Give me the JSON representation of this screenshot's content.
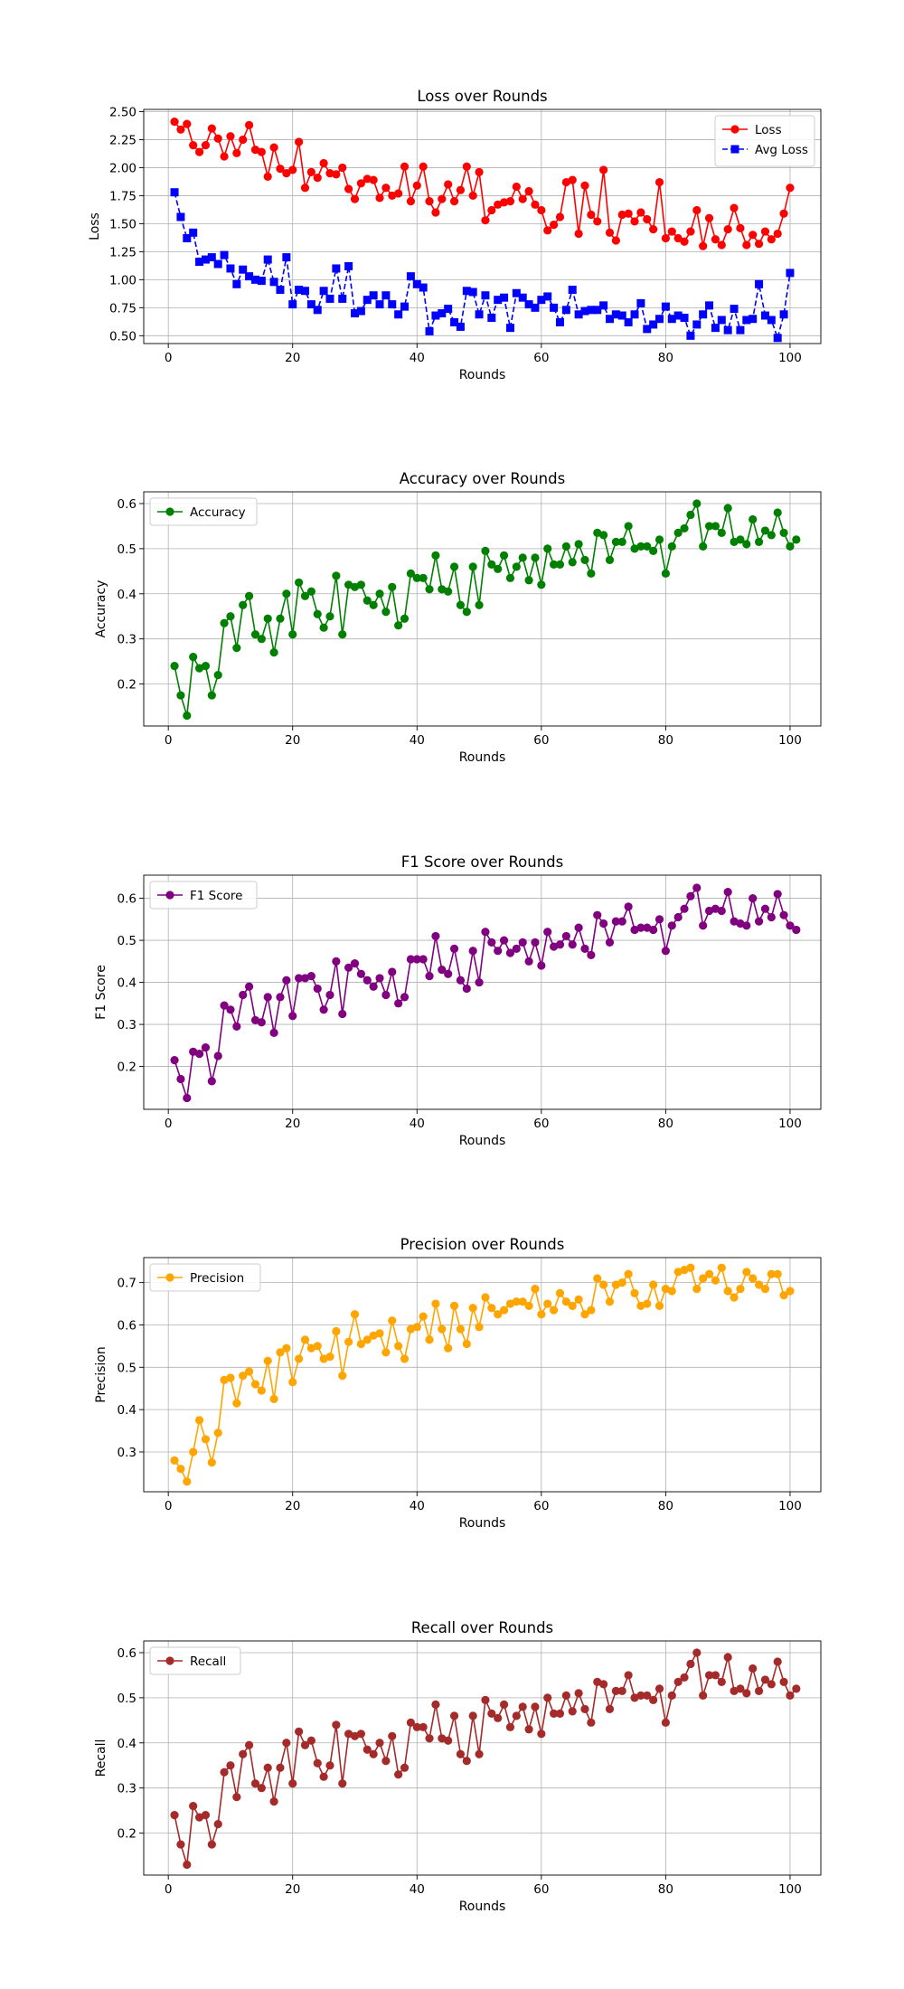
{
  "chart_data": [
    {
      "type": "line",
      "title": "Loss over Rounds",
      "xlabel": "Rounds",
      "ylabel": "Loss",
      "xlim": [
        -3.95,
        104.95
      ],
      "ylim": [
        0.43,
        2.52
      ],
      "xticks": [
        0,
        20,
        40,
        60,
        80,
        100
      ],
      "yticks": [
        0.5,
        0.75,
        1.0,
        1.25,
        1.5,
        1.75,
        2.0,
        2.25,
        2.5
      ],
      "yticklabels": [
        "0.50",
        "0.75",
        "1.00",
        "1.25",
        "1.50",
        "1.75",
        "2.00",
        "2.25",
        "2.50"
      ],
      "grid": true,
      "legend": "upper right",
      "series": [
        {
          "name": "Loss",
          "color": "#ff0000",
          "marker": "circle",
          "linestyle": "solid",
          "values": [
            2.41,
            2.34,
            2.39,
            2.2,
            2.14,
            2.2,
            2.35,
            2.26,
            2.1,
            2.28,
            2.13,
            2.25,
            2.38,
            2.16,
            2.14,
            1.92,
            2.18,
            1.99,
            1.95,
            1.98,
            2.23,
            1.82,
            1.96,
            1.91,
            2.04,
            1.95,
            1.94,
            2.0,
            1.81,
            1.72,
            1.86,
            1.9,
            1.89,
            1.73,
            1.82,
            1.75,
            1.77,
            2.01,
            1.7,
            1.84,
            2.01,
            1.7,
            1.6,
            1.72,
            1.85,
            1.7,
            1.8,
            2.01,
            1.75,
            1.96,
            1.53,
            1.62,
            1.67,
            1.69,
            1.7,
            1.83,
            1.72,
            1.79,
            1.67,
            1.62,
            1.44,
            1.49,
            1.56,
            1.87,
            1.89,
            1.41,
            1.84,
            1.58,
            1.52,
            1.98,
            1.42,
            1.35,
            1.58,
            1.59,
            1.52,
            1.6,
            1.54,
            1.45,
            1.87,
            1.37,
            1.43,
            1.37,
            1.34,
            1.43,
            1.62,
            1.3,
            1.55,
            1.36,
            1.31,
            1.45,
            1.64,
            1.46,
            1.31,
            1.4,
            1.32,
            1.43,
            1.36,
            1.41,
            1.59,
            1.82
          ]
        },
        {
          "name": "Avg Loss",
          "color": "#0000ff",
          "marker": "square",
          "linestyle": "dashed",
          "values": [
            1.78,
            1.56,
            1.37,
            1.42,
            1.16,
            1.18,
            1.2,
            1.14,
            1.22,
            1.1,
            0.96,
            1.09,
            1.03,
            1.0,
            0.99,
            1.18,
            0.98,
            0.91,
            1.2,
            0.78,
            0.91,
            0.9,
            0.78,
            0.73,
            0.9,
            0.83,
            1.1,
            0.83,
            1.12,
            0.7,
            0.72,
            0.82,
            0.86,
            0.78,
            0.86,
            0.78,
            0.69,
            0.76,
            1.03,
            0.96,
            0.93,
            0.54,
            0.68,
            0.7,
            0.74,
            0.62,
            0.58,
            0.9,
            0.89,
            0.69,
            0.86,
            0.66,
            0.82,
            0.84,
            0.57,
            0.88,
            0.84,
            0.78,
            0.75,
            0.82,
            0.85,
            0.75,
            0.62,
            0.73,
            0.91,
            0.69,
            0.72,
            0.73,
            0.73,
            0.77,
            0.65,
            0.69,
            0.68,
            0.62,
            0.69,
            0.79,
            0.56,
            0.6,
            0.65,
            0.76,
            0.65,
            0.68,
            0.66,
            0.5,
            0.6,
            0.69,
            0.77,
            0.57,
            0.64,
            0.55,
            0.74,
            0.55,
            0.64,
            0.65,
            0.96,
            0.68,
            0.64,
            0.48,
            0.69,
            1.06
          ]
        }
      ]
    },
    {
      "type": "line",
      "title": "Accuracy over Rounds",
      "xlabel": "Rounds",
      "ylabel": "Accuracy",
      "xlim": [
        -3.95,
        104.95
      ],
      "ylim": [
        0.107,
        0.626
      ],
      "xticks": [
        0,
        20,
        40,
        60,
        80,
        100
      ],
      "yticks": [
        0.2,
        0.3,
        0.4,
        0.5,
        0.6
      ],
      "yticklabels": [
        "0.2",
        "0.3",
        "0.4",
        "0.5",
        "0.6"
      ],
      "grid": true,
      "legend": "upper left",
      "series": [
        {
          "name": "Accuracy",
          "color": "#008000",
          "marker": "circle",
          "linestyle": "solid",
          "values": [
            0.24,
            0.175,
            0.13,
            0.26,
            0.235,
            0.24,
            0.175,
            0.22,
            0.335,
            0.35,
            0.28,
            0.375,
            0.395,
            0.31,
            0.3,
            0.345,
            0.27,
            0.345,
            0.4,
            0.31,
            0.425,
            0.395,
            0.405,
            0.355,
            0.325,
            0.35,
            0.44,
            0.31,
            0.42,
            0.415,
            0.42,
            0.385,
            0.375,
            0.4,
            0.36,
            0.415,
            0.33,
            0.345,
            0.445,
            0.435,
            0.435,
            0.41,
            0.485,
            0.41,
            0.405,
            0.46,
            0.375,
            0.36,
            0.46,
            0.375,
            0.495,
            0.465,
            0.455,
            0.485,
            0.435,
            0.46,
            0.48,
            0.43,
            0.48,
            0.42,
            0.5,
            0.465,
            0.465,
            0.505,
            0.47,
            0.51,
            0.475,
            0.445,
            0.535,
            0.53,
            0.475,
            0.515,
            0.515,
            0.55,
            0.5,
            0.505,
            0.505,
            0.495,
            0.52,
            0.445,
            0.505,
            0.535,
            0.545,
            0.575,
            0.6,
            0.505,
            0.55,
            0.55,
            0.535,
            0.59,
            0.515,
            0.52,
            0.51,
            0.565,
            0.515,
            0.54,
            0.53,
            0.58,
            0.535,
            0.505,
            0.52
          ]
        }
      ]
    },
    {
      "type": "line",
      "title": "F1 Score over Rounds",
      "xlabel": "Rounds",
      "ylabel": "F1 Score",
      "xlim": [
        -3.95,
        104.95
      ],
      "ylim": [
        0.098,
        0.655
      ],
      "xticks": [
        0,
        20,
        40,
        60,
        80,
        100
      ],
      "yticks": [
        0.2,
        0.3,
        0.4,
        0.5,
        0.6
      ],
      "yticklabels": [
        "0.2",
        "0.3",
        "0.4",
        "0.5",
        "0.6"
      ],
      "grid": true,
      "legend": "upper left",
      "series": [
        {
          "name": "F1 Score",
          "color": "#800080",
          "marker": "circle",
          "linestyle": "solid",
          "values": [
            0.215,
            0.17,
            0.125,
            0.235,
            0.23,
            0.245,
            0.165,
            0.225,
            0.345,
            0.335,
            0.295,
            0.37,
            0.39,
            0.31,
            0.305,
            0.365,
            0.28,
            0.365,
            0.405,
            0.32,
            0.41,
            0.41,
            0.415,
            0.385,
            0.335,
            0.37,
            0.45,
            0.325,
            0.435,
            0.445,
            0.42,
            0.405,
            0.39,
            0.41,
            0.37,
            0.425,
            0.35,
            0.365,
            0.455,
            0.455,
            0.455,
            0.415,
            0.51,
            0.43,
            0.42,
            0.48,
            0.405,
            0.385,
            0.475,
            0.4,
            0.52,
            0.495,
            0.475,
            0.5,
            0.47,
            0.48,
            0.495,
            0.45,
            0.495,
            0.44,
            0.52,
            0.485,
            0.49,
            0.51,
            0.49,
            0.53,
            0.48,
            0.465,
            0.56,
            0.54,
            0.495,
            0.545,
            0.545,
            0.58,
            0.525,
            0.53,
            0.53,
            0.525,
            0.55,
            0.475,
            0.535,
            0.555,
            0.575,
            0.605,
            0.625,
            0.535,
            0.57,
            0.575,
            0.57,
            0.615,
            0.545,
            0.54,
            0.535,
            0.6,
            0.545,
            0.575,
            0.555,
            0.61,
            0.56,
            0.535,
            0.525
          ]
        }
      ]
    },
    {
      "type": "line",
      "title": "Precision over Rounds",
      "xlabel": "Rounds",
      "ylabel": "Precision",
      "xlim": [
        -3.95,
        104.95
      ],
      "ylim": [
        0.206,
        0.759
      ],
      "xticks": [
        0,
        20,
        40,
        60,
        80,
        100
      ],
      "yticks": [
        0.3,
        0.4,
        0.5,
        0.6,
        0.7
      ],
      "yticklabels": [
        "0.3",
        "0.4",
        "0.5",
        "0.6",
        "0.7"
      ],
      "grid": true,
      "legend": "upper left",
      "series": [
        {
          "name": "Precision",
          "color": "#ffa500",
          "marker": "circle",
          "linestyle": "solid",
          "values": [
            0.28,
            0.26,
            0.23,
            0.3,
            0.375,
            0.33,
            0.275,
            0.345,
            0.47,
            0.475,
            0.415,
            0.48,
            0.49,
            0.46,
            0.445,
            0.515,
            0.425,
            0.535,
            0.545,
            0.465,
            0.52,
            0.565,
            0.545,
            0.55,
            0.52,
            0.525,
            0.585,
            0.48,
            0.56,
            0.625,
            0.555,
            0.565,
            0.575,
            0.58,
            0.535,
            0.61,
            0.55,
            0.52,
            0.59,
            0.595,
            0.62,
            0.565,
            0.65,
            0.59,
            0.545,
            0.645,
            0.59,
            0.555,
            0.64,
            0.595,
            0.665,
            0.64,
            0.625,
            0.635,
            0.65,
            0.655,
            0.655,
            0.645,
            0.685,
            0.625,
            0.65,
            0.635,
            0.675,
            0.655,
            0.645,
            0.66,
            0.625,
            0.635,
            0.71,
            0.695,
            0.655,
            0.695,
            0.7,
            0.72,
            0.675,
            0.645,
            0.65,
            0.695,
            0.645,
            0.685,
            0.68,
            0.725,
            0.73,
            0.735,
            0.685,
            0.71,
            0.72,
            0.705,
            0.735,
            0.68,
            0.665,
            0.685,
            0.725,
            0.71,
            0.695,
            0.685,
            0.72,
            0.72,
            0.67,
            0.68
          ]
        }
      ]
    },
    {
      "type": "line",
      "title": "Recall over Rounds",
      "xlabel": "Rounds",
      "ylabel": "Recall",
      "xlim": [
        -3.95,
        104.95
      ],
      "ylim": [
        0.107,
        0.626
      ],
      "xticks": [
        0,
        20,
        40,
        60,
        80,
        100
      ],
      "yticks": [
        0.2,
        0.3,
        0.4,
        0.5,
        0.6
      ],
      "yticklabels": [
        "0.2",
        "0.3",
        "0.4",
        "0.5",
        "0.6"
      ],
      "grid": true,
      "legend": "upper left",
      "series": [
        {
          "name": "Recall",
          "color": "#a52a2a",
          "marker": "circle",
          "linestyle": "solid",
          "values": [
            0.24,
            0.175,
            0.13,
            0.26,
            0.235,
            0.24,
            0.175,
            0.22,
            0.335,
            0.35,
            0.28,
            0.375,
            0.395,
            0.31,
            0.3,
            0.345,
            0.27,
            0.345,
            0.4,
            0.31,
            0.425,
            0.395,
            0.405,
            0.355,
            0.325,
            0.35,
            0.44,
            0.31,
            0.42,
            0.415,
            0.42,
            0.385,
            0.375,
            0.4,
            0.36,
            0.415,
            0.33,
            0.345,
            0.445,
            0.435,
            0.435,
            0.41,
            0.485,
            0.41,
            0.405,
            0.46,
            0.375,
            0.36,
            0.46,
            0.375,
            0.495,
            0.465,
            0.455,
            0.485,
            0.435,
            0.46,
            0.48,
            0.43,
            0.48,
            0.42,
            0.5,
            0.465,
            0.465,
            0.505,
            0.47,
            0.51,
            0.475,
            0.445,
            0.535,
            0.53,
            0.475,
            0.515,
            0.515,
            0.55,
            0.5,
            0.505,
            0.505,
            0.495,
            0.52,
            0.445,
            0.505,
            0.535,
            0.545,
            0.575,
            0.6,
            0.505,
            0.55,
            0.55,
            0.535,
            0.59,
            0.515,
            0.52,
            0.51,
            0.565,
            0.515,
            0.54,
            0.53,
            0.58,
            0.535,
            0.505,
            0.52
          ]
        }
      ]
    }
  ]
}
